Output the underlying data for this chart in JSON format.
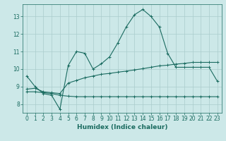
{
  "title": "",
  "xlabel": "Humidex (Indice chaleur)",
  "ylabel": "",
  "background_color": "#cce8e8",
  "grid_color": "#aacccc",
  "line_color": "#1a6b60",
  "xlim": [
    -0.5,
    23.5
  ],
  "ylim": [
    7.5,
    13.7
  ],
  "yticks": [
    8,
    9,
    10,
    11,
    12,
    13
  ],
  "xticks": [
    0,
    1,
    2,
    3,
    4,
    5,
    6,
    7,
    8,
    9,
    10,
    11,
    12,
    13,
    14,
    15,
    16,
    17,
    18,
    19,
    20,
    21,
    22,
    23
  ],
  "series1_x": [
    0,
    1,
    2,
    3,
    4,
    5,
    6,
    7,
    8,
    9,
    10,
    11,
    12,
    13,
    14,
    15,
    16,
    17,
    18,
    19,
    20,
    21,
    22,
    23
  ],
  "series1_y": [
    9.6,
    9.0,
    8.6,
    8.5,
    7.7,
    10.2,
    11.0,
    10.9,
    10.0,
    10.3,
    10.7,
    11.5,
    12.4,
    13.1,
    13.4,
    13.0,
    12.4,
    10.9,
    10.1,
    10.1,
    10.1,
    10.1,
    10.1,
    9.3
  ],
  "series2_x": [
    0,
    1,
    2,
    3,
    4,
    5,
    6,
    7,
    8,
    9,
    10,
    11,
    12,
    13,
    14,
    15,
    16,
    17,
    18,
    19,
    20,
    21,
    22,
    23
  ],
  "series2_y": [
    8.85,
    8.9,
    8.7,
    8.65,
    8.6,
    9.2,
    9.35,
    9.5,
    9.6,
    9.7,
    9.75,
    9.82,
    9.88,
    9.95,
    10.02,
    10.1,
    10.18,
    10.22,
    10.28,
    10.32,
    10.38,
    10.38,
    10.38,
    10.38
  ],
  "series3_x": [
    0,
    1,
    2,
    3,
    4,
    5,
    6,
    7,
    8,
    9,
    10,
    11,
    12,
    13,
    14,
    15,
    16,
    17,
    18,
    19,
    20,
    21,
    22,
    23
  ],
  "series3_y": [
    8.7,
    8.7,
    8.65,
    8.6,
    8.5,
    8.45,
    8.42,
    8.42,
    8.42,
    8.42,
    8.42,
    8.42,
    8.42,
    8.42,
    8.42,
    8.42,
    8.42,
    8.42,
    8.42,
    8.42,
    8.42,
    8.42,
    8.42,
    8.42
  ],
  "marker": "+",
  "markersize": 3,
  "linewidth": 0.8,
  "font_color": "#1a6b60",
  "tick_fontsize": 5.5,
  "xlabel_fontsize": 6.5
}
